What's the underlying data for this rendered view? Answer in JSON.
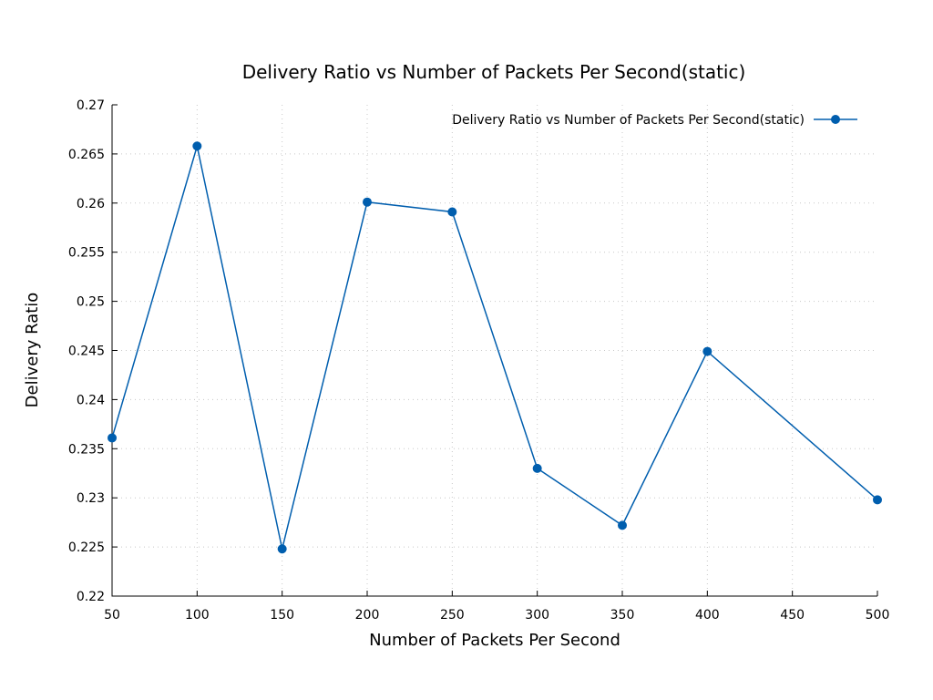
{
  "chart_data": {
    "type": "line",
    "title": "Delivery Ratio vs Number of Packets Per Second(static)",
    "xlabel": "Number of Packets Per Second",
    "ylabel": "Delivery Ratio",
    "xlim": [
      50,
      500
    ],
    "ylim": [
      0.22,
      0.27
    ],
    "xticks": [
      50,
      100,
      150,
      200,
      250,
      300,
      350,
      400,
      450,
      500
    ],
    "xtick_labels": [
      "50",
      "100",
      "150",
      "200",
      "250",
      "300",
      "350",
      "400",
      "450",
      "500"
    ],
    "yticks": [
      0.22,
      0.225,
      0.23,
      0.235,
      0.24,
      0.245,
      0.25,
      0.255,
      0.26,
      0.265,
      0.27
    ],
    "ytick_labels": [
      "0.22",
      "0.225",
      "0.23",
      "0.235",
      "0.24",
      "0.245",
      "0.25",
      "0.255",
      "0.26",
      "0.265",
      "0.27"
    ],
    "grid": true,
    "legend_position": "top-right",
    "series": [
      {
        "name": "Delivery Ratio vs Number of Packets Per Second(static)",
        "color": "#005eae",
        "marker": "circle",
        "x": [
          50,
          100,
          150,
          200,
          250,
          300,
          350,
          400,
          500
        ],
        "y": [
          0.2361,
          0.2658,
          0.2248,
          0.2601,
          0.2591,
          0.233,
          0.2272,
          0.2449,
          0.2298
        ]
      }
    ]
  }
}
